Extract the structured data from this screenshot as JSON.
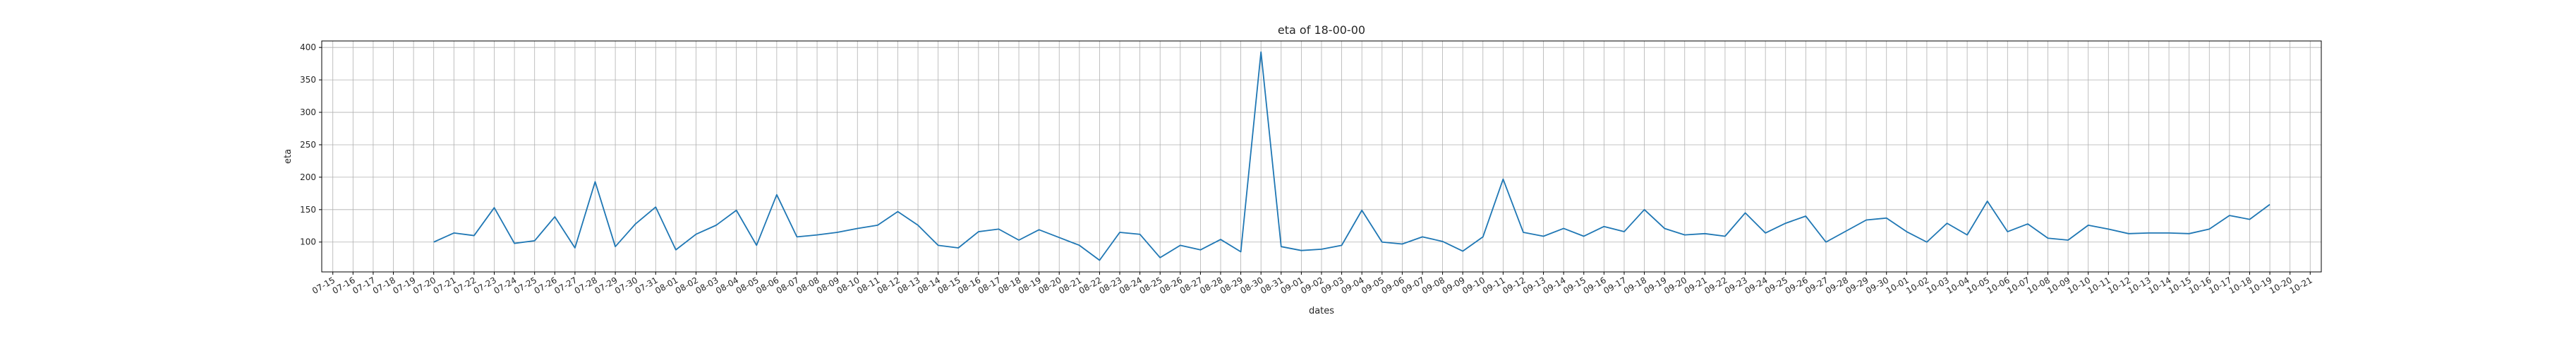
{
  "chart_data": {
    "type": "line",
    "title": "eta of 18-00-00",
    "xlabel": "dates",
    "ylabel": "eta",
    "grid": true,
    "legend": "none",
    "x_ticks": [
      "07-15",
      "07-16",
      "07-17",
      "07-18",
      "07-19",
      "07-20",
      "07-21",
      "07-22",
      "07-23",
      "07-24",
      "07-25",
      "07-26",
      "07-27",
      "07-28",
      "07-29",
      "07-30",
      "07-31",
      "08-01",
      "08-02",
      "08-03",
      "08-04",
      "08-05",
      "08-06",
      "08-07",
      "08-08",
      "08-09",
      "08-10",
      "08-11",
      "08-12",
      "08-13",
      "08-14",
      "08-15",
      "08-16",
      "08-17",
      "08-18",
      "08-19",
      "08-20",
      "08-21",
      "08-22",
      "08-23",
      "08-24",
      "08-25",
      "08-26",
      "08-27",
      "08-28",
      "08-29",
      "08-30",
      "08-31",
      "09-01",
      "09-02",
      "09-03",
      "09-04",
      "09-05",
      "09-06",
      "09-07",
      "09-08",
      "09-09",
      "09-10",
      "09-11",
      "09-12",
      "09-13",
      "09-14",
      "09-15",
      "09-16",
      "09-17",
      "09-18",
      "09-19",
      "09-20",
      "09-21",
      "09-22",
      "09-23",
      "09-24",
      "09-25",
      "09-26",
      "09-27",
      "09-28",
      "09-29",
      "09-30",
      "10-01",
      "10-02",
      "10-03",
      "10-04",
      "10-05",
      "10-06",
      "10-07",
      "10-08",
      "10-09",
      "10-10",
      "10-11",
      "10-12",
      "10-13",
      "10-14",
      "10-15",
      "10-16",
      "10-17",
      "10-18",
      "10-19",
      "10-20",
      "10-21"
    ],
    "y_ticks": [
      100,
      150,
      200,
      250,
      300,
      350,
      400
    ],
    "xlim": [
      "07-15",
      "10-21"
    ],
    "ylim": [
      54,
      410
    ],
    "x_start": "07-20",
    "color": "#1f77b4",
    "series": [
      {
        "values": [
          100,
          114,
          110,
          153,
          98,
          102,
          139,
          91,
          193,
          93,
          128,
          154,
          88,
          112,
          126,
          149,
          95,
          173,
          108,
          111,
          115,
          121,
          126,
          147,
          126,
          95,
          91,
          116,
          120,
          103,
          119,
          107,
          95,
          72,
          115,
          112,
          76,
          95,
          88,
          104,
          85,
          393,
          93,
          87,
          89,
          95,
          149,
          100,
          97,
          108,
          101,
          86,
          108,
          197,
          115,
          109,
          121,
          109,
          124,
          116,
          150,
          121,
          111,
          113,
          109,
          145,
          114,
          129,
          140,
          100,
          117,
          134,
          137,
          116,
          100,
          129,
          111,
          163,
          116,
          128,
          106,
          103,
          126,
          120,
          113,
          114,
          114,
          113,
          120,
          141,
          135,
          158
        ]
      }
    ]
  }
}
